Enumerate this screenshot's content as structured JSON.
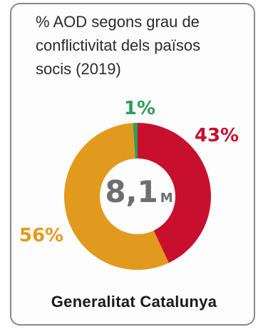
{
  "chart_data": {
    "type": "pie",
    "title_lines": [
      "% AOD segons grau de",
      "conflictivitat dels països",
      "socis (2019)"
    ],
    "center_value": "8,1",
    "center_unit": "M",
    "slices": [
      {
        "value": 43,
        "label": "43%",
        "color": "#c8102e"
      },
      {
        "value": 56,
        "label": "56%",
        "color": "#e29a1e"
      },
      {
        "value": 1,
        "label": "1%",
        "color": "#2e9e5b"
      }
    ]
  },
  "footer": {
    "text": "Generalitat Catalunya"
  }
}
